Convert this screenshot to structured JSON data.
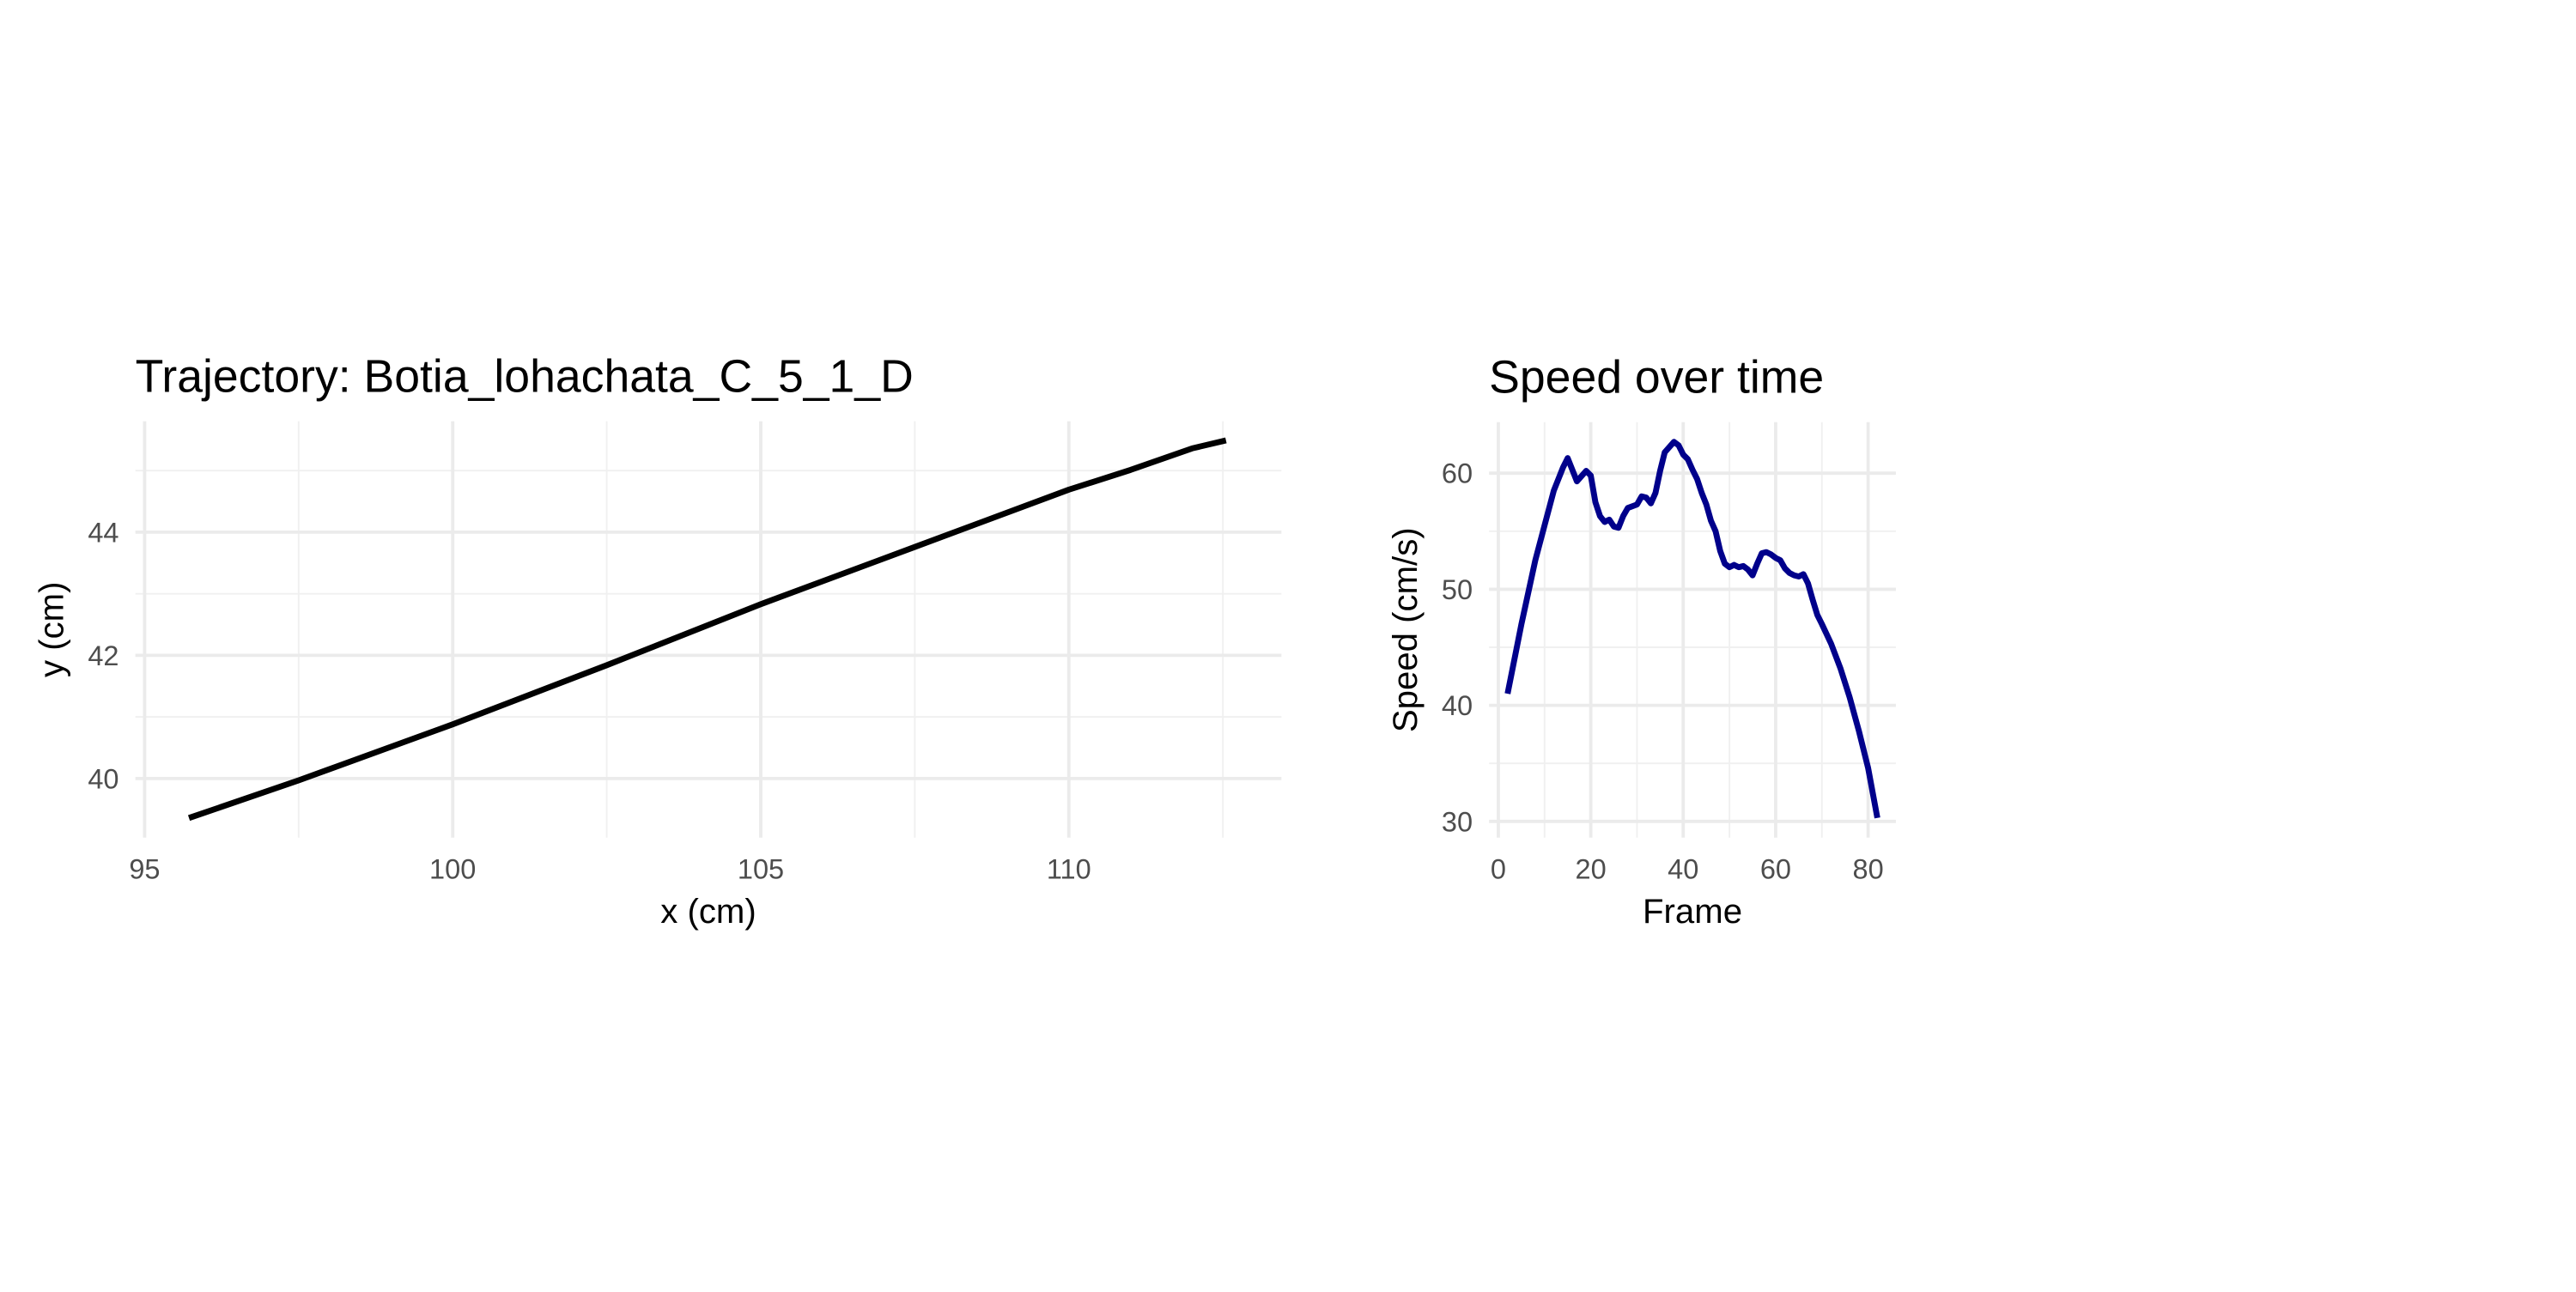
{
  "chart_data": [
    {
      "type": "line",
      "title": "Trajectory: Botia_lohachata_C_5_1_D",
      "xlabel": "x (cm)",
      "ylabel": "y (cm)",
      "x": [
        95.72,
        97.5,
        100,
        102.5,
        105,
        107.5,
        110,
        111,
        112,
        112.55
      ],
      "values": [
        39.36,
        39.97,
        40.88,
        41.84,
        42.83,
        43.76,
        44.69,
        45.01,
        45.36,
        45.49
      ],
      "color": "#000000",
      "xlim": [
        94.85,
        113.45
      ],
      "ylim": [
        39.04,
        45.8
      ],
      "xticks": [
        95,
        100,
        105,
        110
      ],
      "yticks": [
        40,
        42,
        44
      ],
      "grid": true
    },
    {
      "type": "line",
      "title": "Speed over time",
      "xlabel": "Frame",
      "ylabel": "Speed (cm/s)",
      "x": [
        2,
        5,
        8,
        10,
        12,
        14,
        15,
        17,
        19,
        20,
        21,
        22,
        23,
        24,
        25,
        26,
        27,
        28,
        30,
        31,
        32,
        33,
        34,
        35,
        36,
        38,
        39,
        40,
        41,
        42,
        43,
        44,
        45,
        46,
        47,
        48,
        49,
        50,
        51,
        52,
        53,
        54,
        55,
        56,
        57,
        58,
        59,
        60,
        61,
        62,
        63,
        64,
        65,
        66,
        67,
        68,
        69,
        70,
        72,
        74,
        76,
        78,
        80,
        82
      ],
      "values": [
        41.0,
        47,
        52.5,
        55.5,
        58.5,
        60.5,
        61.3,
        59.3,
        60.2,
        59.8,
        57.5,
        56.3,
        55.8,
        56.0,
        55.4,
        55.3,
        56.3,
        57.0,
        57.3,
        58.0,
        57.9,
        57.4,
        58.3,
        60.2,
        61.8,
        62.7,
        62.4,
        61.6,
        61.2,
        60.3,
        59.5,
        58.3,
        57.3,
        55.9,
        55.0,
        53.3,
        52.2,
        51.9,
        52.1,
        51.9,
        52.0,
        51.7,
        51.2,
        52.2,
        53.1,
        53.2,
        53.0,
        52.7,
        52.5,
        51.8,
        51.4,
        51.2,
        51.1,
        51.3,
        50.5,
        49.1,
        47.8,
        47.0,
        45.3,
        43.2,
        40.7,
        37.8,
        34.6,
        30.3
      ],
      "color": "#00008b",
      "xlim": [
        -2,
        86
      ],
      "ylim": [
        28.6,
        64.4
      ],
      "xticks": [
        0,
        20,
        40,
        60,
        80
      ],
      "yticks": [
        30,
        40,
        50,
        60
      ],
      "grid": true
    }
  ]
}
